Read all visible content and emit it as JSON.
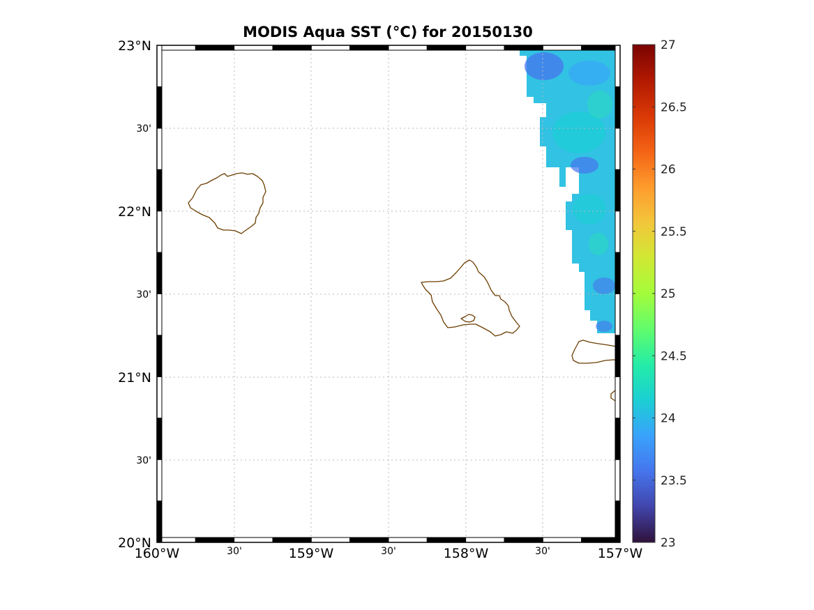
{
  "title": "MODIS Aqua SST (°C) for 20150130",
  "map": {
    "lon_range": [
      -160,
      -157
    ],
    "lat_range": [
      20,
      23
    ],
    "x_major_labels": [
      "160°W",
      "159°W",
      "158°W",
      "157°W"
    ],
    "x_minor_labels": [
      "30'",
      "30'",
      "30'"
    ],
    "y_major_labels": [
      "20°N",
      "21°N",
      "22°N",
      "23°N"
    ],
    "y_minor_labels": [
      "30'",
      "30'",
      "30'"
    ],
    "grid": true,
    "coastline_color": "#6b3d00",
    "islands": [
      "Kauai",
      "Oahu",
      "Molokai",
      "Lanai"
    ]
  },
  "colorbar": {
    "min": 23,
    "max": 27,
    "tick_labels": [
      "23",
      "23.5",
      "24",
      "24.5",
      "25",
      "25.5",
      "26",
      "26.5",
      "27"
    ],
    "colormap": "jet",
    "colors": [
      "#30123b",
      "#4145ab",
      "#4675ed",
      "#39a2fc",
      "#1bcfd4",
      "#24eca6",
      "#61fc6c",
      "#a4fc3b",
      "#d1e834",
      "#f3c63a",
      "#fe9b2d",
      "#f36315",
      "#d93806",
      "#b11901",
      "#7a0403"
    ]
  },
  "sst_field": {
    "coverage": "north-east corner only",
    "approx_range_c": [
      23.4,
      24.3
    ]
  }
}
